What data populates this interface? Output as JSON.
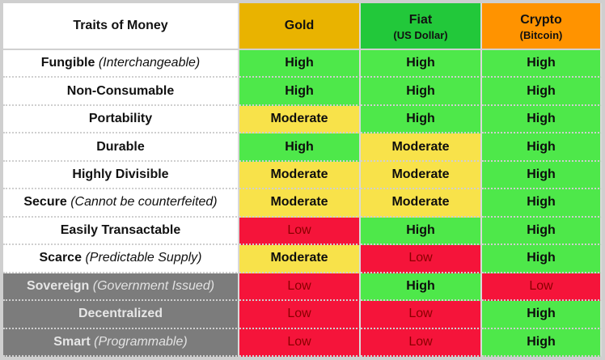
{
  "header": {
    "traits_title": "Traits of Money",
    "columns": [
      {
        "name": "Gold",
        "sub": ""
      },
      {
        "name": "Fiat",
        "sub": "(US Dollar)"
      },
      {
        "name": "Crypto",
        "sub": "(Bitcoin)"
      }
    ]
  },
  "rows": [
    {
      "trait": "Fungible",
      "note": "(Interchangeable)",
      "values": [
        "High",
        "High",
        "High"
      ]
    },
    {
      "trait": "Non-Consumable",
      "note": "",
      "values": [
        "High",
        "High",
        "High"
      ]
    },
    {
      "trait": "Portability",
      "note": "",
      "values": [
        "Moderate",
        "High",
        "High"
      ]
    },
    {
      "trait": "Durable",
      "note": "",
      "values": [
        "High",
        "Moderate",
        "High"
      ]
    },
    {
      "trait": "Highly Divisible",
      "note": "",
      "values": [
        "Moderate",
        "Moderate",
        "High"
      ]
    },
    {
      "trait": "Secure",
      "note": "(Cannot be counterfeited)",
      "values": [
        "Moderate",
        "Moderate",
        "High"
      ]
    },
    {
      "trait": "Easily Transactable",
      "note": "",
      "values": [
        "Low",
        "High",
        "High"
      ]
    },
    {
      "trait": "Scarce",
      "note": "(Predictable Supply)",
      "values": [
        "Moderate",
        "Low",
        "High"
      ]
    },
    {
      "trait": "Sovereign",
      "note": "(Government Issued)",
      "values": [
        "Low",
        "High",
        "Low"
      ]
    },
    {
      "trait": "Decentralized",
      "note": "",
      "values": [
        "Low",
        "Low",
        "High"
      ]
    },
    {
      "trait": "Smart",
      "note": "(Programmable)",
      "values": [
        "Low",
        "Low",
        "High"
      ]
    }
  ],
  "colors": {
    "gold": "#e9b300",
    "fiat": "#22c83a",
    "crypto": "#ff9300",
    "high": "#4ee84a",
    "moderate": "#f8e24a",
    "low": "#f5143a",
    "grey_rows": "#7c7c7c"
  }
}
